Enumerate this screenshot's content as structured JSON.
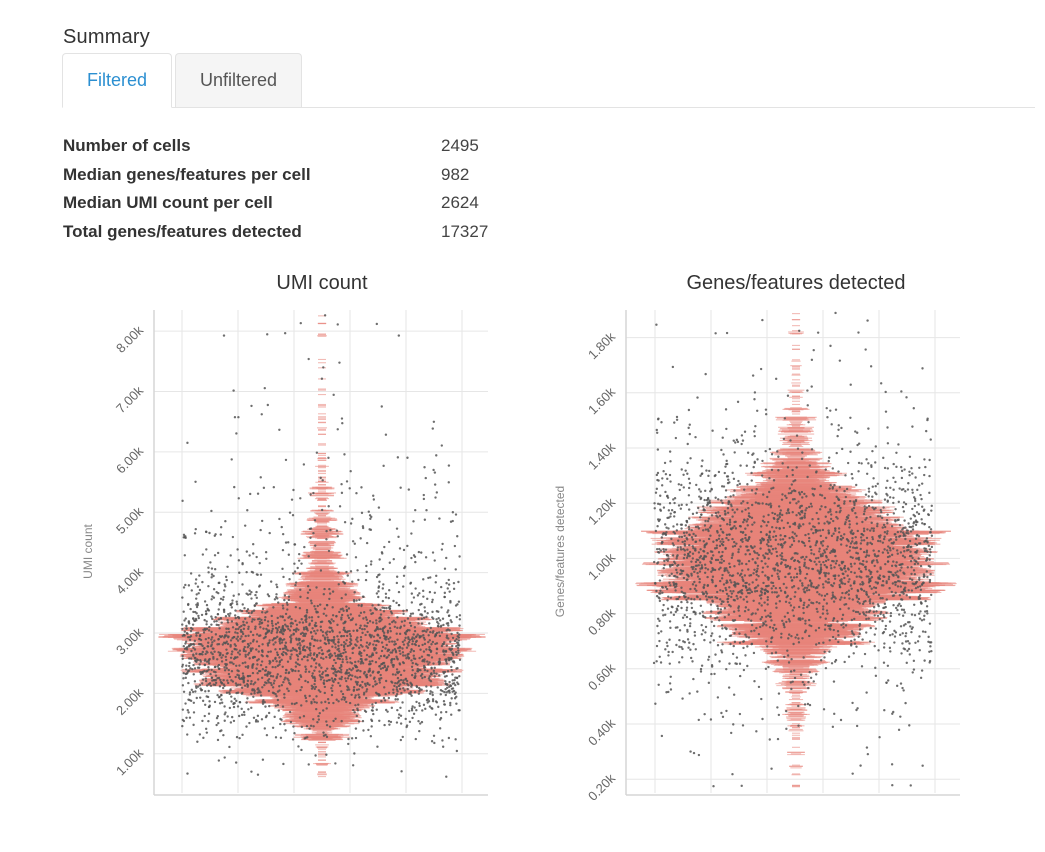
{
  "summary": {
    "title": "Summary",
    "tabs": [
      {
        "label": "Filtered",
        "active": true
      },
      {
        "label": "Unfiltered",
        "active": false
      }
    ],
    "stats": [
      {
        "label": "Number of cells",
        "value": "2495"
      },
      {
        "label": "Median genes/features per cell",
        "value": "982"
      },
      {
        "label": "Median UMI count per cell",
        "value": "2624"
      },
      {
        "label": "Total genes/features detected",
        "value": "17327"
      }
    ]
  },
  "colors": {
    "accent": "#2b8fd1",
    "violin": "#e8847a",
    "point": "#555555",
    "grid": "#e6e6e6"
  },
  "chart_data": [
    {
      "type": "scatter",
      "subtype": "jittered violin (beeswarm) with points",
      "title": "UMI count",
      "xlabel": "",
      "ylabel": "UMI count",
      "ylim": [
        350,
        8350
      ],
      "yticks": [
        1000,
        2000,
        3000,
        4000,
        5000,
        6000,
        7000,
        8000
      ],
      "ytick_labels": [
        "1.00k",
        "2.00k",
        "3.00k",
        "4.00k",
        "5.00k",
        "6.00k",
        "7.00k",
        "8.00k"
      ],
      "n_points": 2495,
      "median": 2624,
      "mode": 2500,
      "max_shown": 8350,
      "grid": true
    },
    {
      "type": "scatter",
      "subtype": "jittered violin (beeswarm) with points",
      "title": "Genes/features detected",
      "xlabel": "",
      "ylabel": "Genes/features detected",
      "ylim": [
        150,
        1900
      ],
      "yticks": [
        200,
        400,
        600,
        800,
        1000,
        1200,
        1400,
        1600,
        1800
      ],
      "ytick_labels": [
        "0.20k",
        "0.40k",
        "0.60k",
        "0.80k",
        "1.00k",
        "1.20k",
        "1.40k",
        "1.60k",
        "1.80k"
      ],
      "n_points": 2495,
      "median": 982,
      "mode": 1000,
      "max_shown": 1900,
      "grid": true
    }
  ]
}
